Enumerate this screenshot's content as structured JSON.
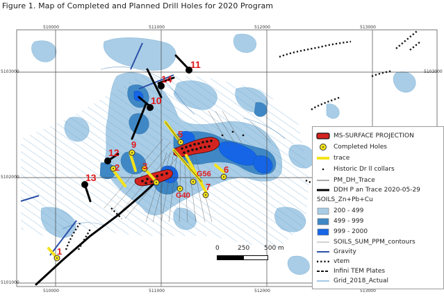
{
  "title": "Figure 1. Map of Completed and Planned Drill Holes for 2020 Program",
  "grid_labels": {
    "top": [
      "510000",
      "511000",
      "512000",
      "513000"
    ],
    "bottom": [
      "510000",
      "511000",
      "512000",
      "513000"
    ],
    "left": [
      "5103000",
      "5102000",
      "5101000"
    ],
    "right": [
      "5103000",
      "5102000",
      "5101000"
    ]
  },
  "holes": [
    {
      "id": "11",
      "type": "planned"
    },
    {
      "id": "14",
      "type": "planned"
    },
    {
      "id": "10",
      "type": "planned"
    },
    {
      "id": "5",
      "type": "completed"
    },
    {
      "id": "9",
      "type": "completed"
    },
    {
      "id": "12",
      "type": "planned"
    },
    {
      "id": "2",
      "type": "completed"
    },
    {
      "id": "3",
      "type": "completed"
    },
    {
      "id": "13",
      "type": "planned"
    },
    {
      "id": "6",
      "type": "completed"
    },
    {
      "id": "G56",
      "type": "completed"
    },
    {
      "id": "G40",
      "type": "completed"
    },
    {
      "id": "7",
      "type": "completed"
    },
    {
      "id": "1",
      "type": "completed"
    }
  ],
  "legend": {
    "items": [
      {
        "label": "MS-SURFACE PROJECTION",
        "symbol": "red-box"
      },
      {
        "label": "Completed Holes",
        "symbol": "yellow-circle"
      },
      {
        "label": "trace",
        "symbol": "yellow-line"
      },
      {
        "label": "Historic Dr ll collars",
        "symbol": "dot"
      },
      {
        "label": "PM_DH_Trace",
        "symbol": "thin-line"
      },
      {
        "label": "DDH P an Trace 2020-05-29",
        "symbol": "thick-black-line"
      }
    ],
    "soils_heading": "SOILS_Zn+Pb+Cu",
    "soils": [
      {
        "label": "200 - 499",
        "color": "#a9cde6"
      },
      {
        "label": "499 - 999",
        "color": "#3f88c5"
      },
      {
        "label": "999 - 2000",
        "color": "#1565e6"
      }
    ],
    "contours_heading": "SOILS_SUM_PPM_contours",
    "lines": [
      {
        "label": "Gravity",
        "symbol": "blue-line"
      },
      {
        "label": "vtem",
        "symbol": "dotted-line"
      },
      {
        "label": "Infini TEM Plates",
        "symbol": "dashed-line"
      },
      {
        "label": "Grid_2018_Actual",
        "symbol": "light-blue-line"
      }
    ]
  },
  "scale": {
    "labels": [
      "0",
      "250",
      "500 m"
    ]
  },
  "colors": {
    "soil_low": "#a9cde6",
    "soil_mid": "#3f88c5",
    "soil_high": "#1565e6",
    "label_red": "#e0191c",
    "trace_yellow": "#f4e31a"
  }
}
